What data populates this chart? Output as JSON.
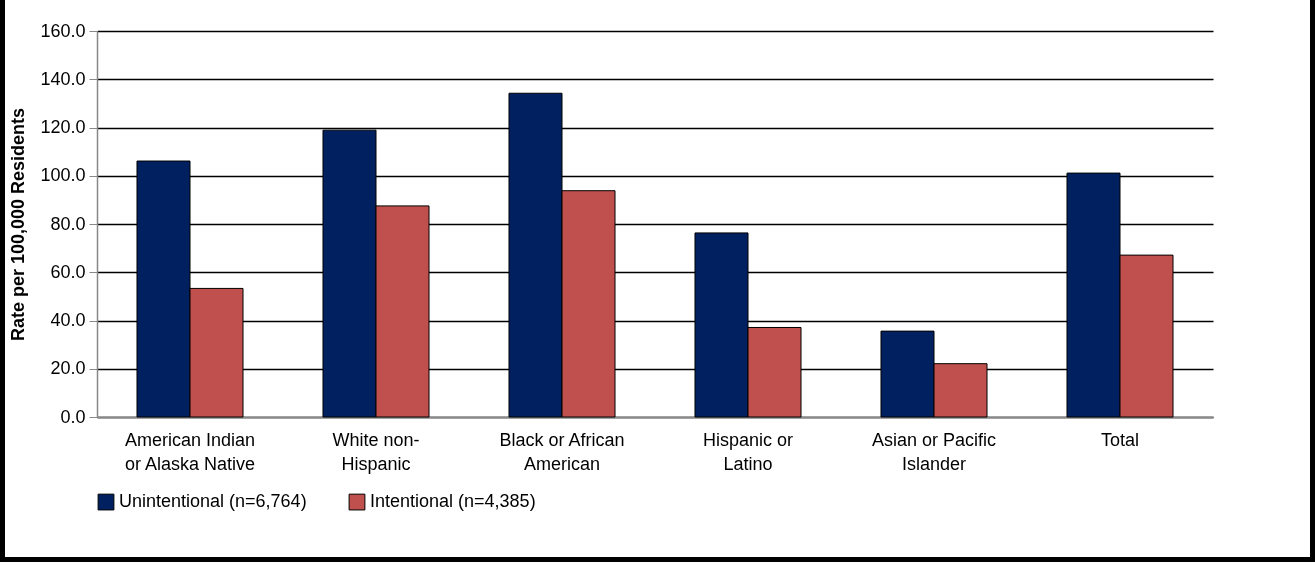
{
  "chart_data": {
    "type": "bar",
    "ylabel": "Rate per 100,000 Residents",
    "categories": [
      "American Indian\nor Alaska Native",
      "White non-\nHispanic",
      "Black or African\nAmerican",
      "Hispanic or\nLatino",
      "Asian or Pacific\nIslander",
      "Total"
    ],
    "series": [
      {
        "name": "Unintentional (n=6,764)",
        "color": "#002060",
        "values": [
          106.1,
          118.9,
          134.2,
          76.3,
          35.6,
          101.1
        ]
      },
      {
        "name": "Intentional (n=4,385)",
        "color": "#c0504d",
        "values": [
          53.3,
          87.5,
          93.8,
          37.1,
          22.1,
          67.1
        ]
      }
    ],
    "ylim": [
      0,
      160
    ],
    "yticks": [
      {
        "value": 0,
        "label": "0.0"
      },
      {
        "value": 20,
        "label": "20.0"
      },
      {
        "value": 40,
        "label": "40.0"
      },
      {
        "value": 60,
        "label": "60.0"
      },
      {
        "value": 80,
        "label": "80.0"
      },
      {
        "value": 100,
        "label": "100.0"
      },
      {
        "value": 120,
        "label": "120.0"
      },
      {
        "value": 140,
        "label": "140.0"
      },
      {
        "value": 160,
        "label": "160.0"
      }
    ],
    "grid": "y",
    "legend": "bottom"
  }
}
